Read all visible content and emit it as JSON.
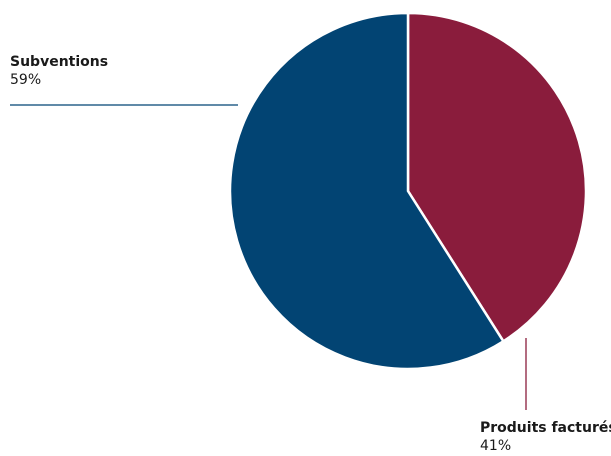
{
  "chart_data": {
    "type": "pie",
    "title": "",
    "start_angle_deg": 0,
    "direction": "clockwise",
    "slices": [
      {
        "label": "Produits facturés",
        "value": 41,
        "display": "41%",
        "color": "#8a1c3c"
      },
      {
        "label": "Subventions",
        "value": 59,
        "display": "59%",
        "color": "#024473"
      }
    ]
  }
}
